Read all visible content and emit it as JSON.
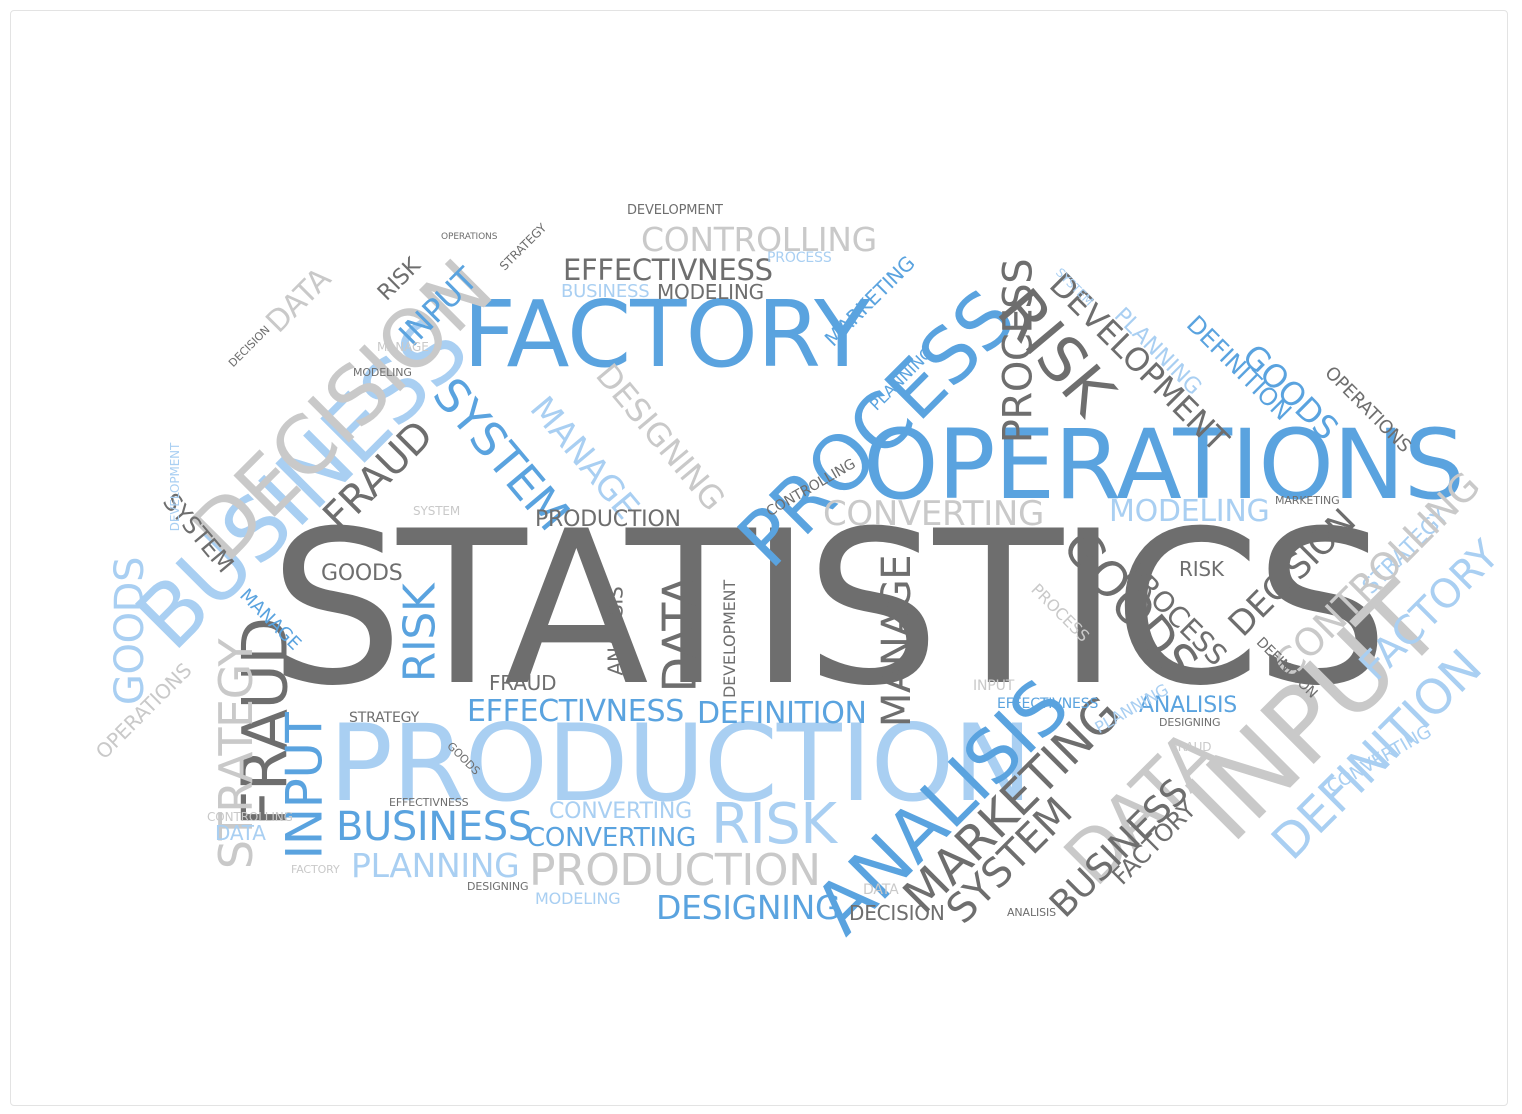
{
  "title": "STATISTICS",
  "colors": {
    "dark_gray": "#6e6e6e",
    "mid_gray": "#9a9a9a",
    "light_gray": "#c9c9c9",
    "blue": "#5aa3df",
    "light_blue": "#a9cff2"
  },
  "words": [
    "STATISTICS",
    "FACTORY",
    "OPERATIONS",
    "PRODUCTION",
    "PROCESS",
    "BUSINESS",
    "DECISION",
    "INPUT",
    "ANALISIS",
    "DATA",
    "EFFECTIVNESS",
    "CONTROLLING",
    "DEVELOPMENT",
    "MODELING",
    "RISK",
    "MARKETING",
    "GOODS",
    "PLANNING",
    "DEFINITION",
    "CONVERTING",
    "FRAUD",
    "SYSTEM",
    "MANAGE",
    "STRATEGY",
    "DESIGNING",
    "PRODUCTION",
    "PROCESS",
    "RISK",
    "SYSTEM",
    "DATA",
    "FRAUD",
    "GOODS",
    "BUSINESS",
    "CONVERTING",
    "PLANNING",
    "DESIGNING",
    "DECISION",
    "RISK",
    "MARKETING",
    "SYSTEM",
    "BUSINESS",
    "FACTORY",
    "INPUT",
    "DEFINITION",
    "EFFECTIVNESS",
    "ANALISIS",
    "MANAGE",
    "MODELING",
    "DEVELOPMENT",
    "DATA",
    "PRODUCTION",
    "STRATEGY",
    "GOODS",
    "PROCESS",
    "DECISION",
    "CONTROLLING",
    "FACTORY",
    "DEFINITION",
    "CONVERTING",
    "OPERATIONS",
    "EFFECTIVNESS",
    "RISK",
    "DESIGNING",
    "FRAUD",
    "MANAGE",
    "ANALISIS",
    "PLANNING",
    "STRATEGY",
    "MODELING",
    "INPUT",
    "GOODS",
    "DATA",
    "SYSTEM",
    "DEVELOPMENT",
    "OPERATIONS",
    "MARKETING",
    "PROCESS",
    "CONTROLLING",
    "DECISION",
    "FACTORY",
    "RISK",
    "GOODS",
    "STRATEGY",
    "PROCESS",
    "BUSINESS",
    "INPUT",
    "DEFINITION",
    "FRAUD",
    "SYSTEM",
    "CONVERTING",
    "DATA",
    "PLANNING",
    "DESIGNING",
    "MODELING",
    "MANAGE",
    "EFFECTIVNESS",
    "ANALISIS",
    "DEVELOPMENT",
    "OPERATIONS",
    "CONTROLLING"
  ]
}
